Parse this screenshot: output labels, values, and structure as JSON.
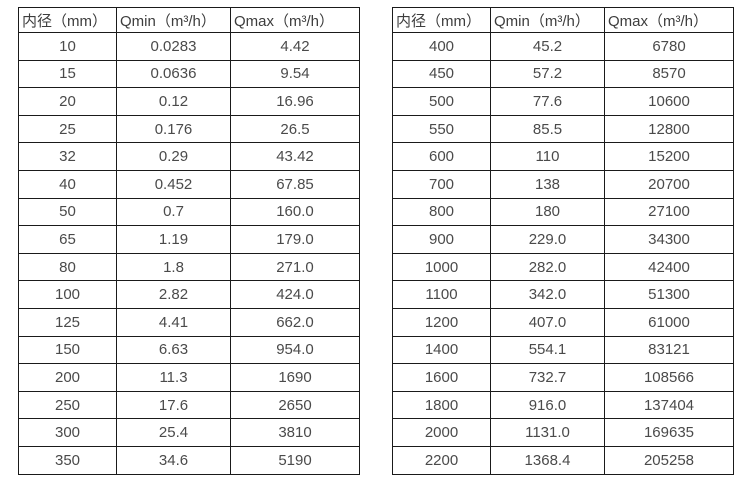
{
  "chart_data": [
    {
      "type": "table",
      "name": "flow-range-small-diameters",
      "columns": [
        "内径（mm）",
        "Qmin（m³/h）",
        "Qmax（m³/h）"
      ],
      "rows": [
        [
          "10",
          "0.0283",
          "4.42"
        ],
        [
          "15",
          "0.0636",
          "9.54"
        ],
        [
          "20",
          "0.12",
          "16.96"
        ],
        [
          "25",
          "0.176",
          "26.5"
        ],
        [
          "32",
          "0.29",
          "43.42"
        ],
        [
          "40",
          "0.452",
          "67.85"
        ],
        [
          "50",
          "0.7",
          "160.0"
        ],
        [
          "65",
          "1.19",
          "179.0"
        ],
        [
          "80",
          "1.8",
          "271.0"
        ],
        [
          "100",
          "2.82",
          "424.0"
        ],
        [
          "125",
          "4.41",
          "662.0"
        ],
        [
          "150",
          "6.63",
          "954.0"
        ],
        [
          "200",
          "11.3",
          "1690"
        ],
        [
          "250",
          "17.6",
          "2650"
        ],
        [
          "300",
          "25.4",
          "3810"
        ],
        [
          "350",
          "34.6",
          "5190"
        ]
      ]
    },
    {
      "type": "table",
      "name": "flow-range-large-diameters",
      "columns": [
        "内径（mm）",
        "Qmin（m³/h）",
        "Qmax（m³/h）"
      ],
      "rows": [
        [
          "400",
          "45.2",
          "6780"
        ],
        [
          "450",
          "57.2",
          "8570"
        ],
        [
          "500",
          "77.6",
          "10600"
        ],
        [
          "550",
          "85.5",
          "12800"
        ],
        [
          "600",
          "110",
          "15200"
        ],
        [
          "700",
          "138",
          "20700"
        ],
        [
          "800",
          "180",
          "27100"
        ],
        [
          "900",
          "229.0",
          "34300"
        ],
        [
          "1000",
          "282.0",
          "42400"
        ],
        [
          "1100",
          "342.0",
          "51300"
        ],
        [
          "1200",
          "407.0",
          "61000"
        ],
        [
          "1400",
          "554.1",
          "83121"
        ],
        [
          "1600",
          "732.7",
          "108566"
        ],
        [
          "1800",
          "916.0",
          "137404"
        ],
        [
          "2000",
          "1131.0",
          "169635"
        ],
        [
          "2200",
          "1368.4",
          "205258"
        ]
      ]
    }
  ],
  "colors": {
    "border": "#1a1a1a",
    "text": "#404040",
    "background": "#ffffff"
  }
}
